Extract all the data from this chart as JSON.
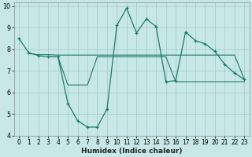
{
  "xlabel": "Humidex (Indice chaleur)",
  "bg_color": "#c8e8e8",
  "grid_color": "#a0c8c8",
  "line_color": "#1a7a6a",
  "xlim": [
    -0.5,
    23.5
  ],
  "ylim": [
    4,
    10.15
  ],
  "yticks": [
    4,
    5,
    6,
    7,
    8,
    9,
    10
  ],
  "xticks": [
    0,
    1,
    2,
    3,
    4,
    5,
    6,
    7,
    8,
    9,
    10,
    11,
    12,
    13,
    14,
    15,
    16,
    17,
    18,
    19,
    20,
    21,
    22,
    23
  ],
  "line1_x": [
    0,
    1,
    2,
    3,
    4,
    5,
    6,
    7,
    8,
    9,
    10,
    11,
    12,
    13,
    14,
    15,
    16,
    17,
    18,
    19,
    20,
    21,
    22,
    23
  ],
  "line1_y": [
    8.5,
    7.85,
    7.7,
    7.65,
    7.65,
    5.5,
    4.7,
    4.4,
    4.4,
    5.25,
    9.1,
    9.9,
    8.75,
    9.4,
    9.05,
    6.5,
    6.55,
    8.8,
    8.4,
    8.25,
    7.9,
    7.3,
    6.9,
    6.6
  ],
  "line2_x": [
    1,
    2,
    3,
    4,
    5,
    6,
    7,
    8,
    9,
    10,
    11,
    12,
    13,
    14,
    15,
    16,
    17,
    18,
    19,
    20,
    21,
    22,
    23
  ],
  "line2_y": [
    7.8,
    7.75,
    7.75,
    7.73,
    7.73,
    7.73,
    7.73,
    7.73,
    7.73,
    7.73,
    7.73,
    7.73,
    7.73,
    7.73,
    7.73,
    7.73,
    7.73,
    7.73,
    7.73,
    7.73,
    7.73,
    7.73,
    6.6
  ],
  "line3_x": [
    3,
    4,
    5,
    6,
    7,
    8,
    9,
    10,
    11,
    12,
    13,
    14,
    15,
    16,
    17,
    18,
    19,
    20,
    21,
    22,
    23
  ],
  "line3_y": [
    7.65,
    7.65,
    6.35,
    6.35,
    6.35,
    7.65,
    7.65,
    7.65,
    7.65,
    7.65,
    7.65,
    7.65,
    7.65,
    6.5,
    6.5,
    6.5,
    6.5,
    6.5,
    6.5,
    6.5,
    6.5
  ],
  "xlabel_fontsize": 6.5,
  "tick_fontsize": 5.8
}
